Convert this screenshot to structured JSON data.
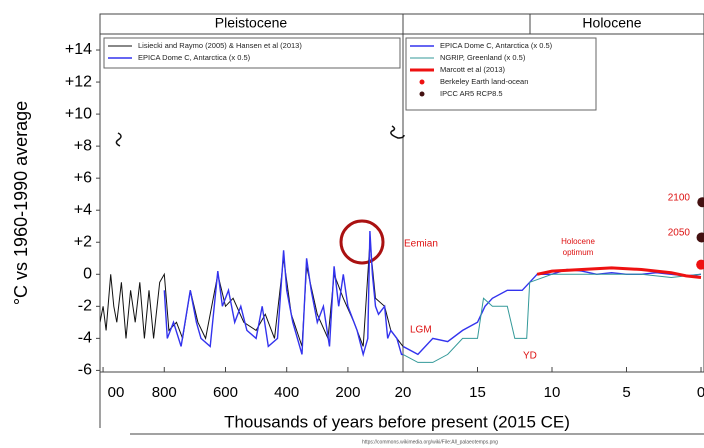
{
  "chart_data": [
    {
      "type": "line",
      "title": "Pleistocene",
      "ylabel": "°C vs 1960-1990 average",
      "xlabel": "Thousands of years before present (2015 CE)",
      "xlim": [
        1010,
        20
      ],
      "ylim": [
        -6.1,
        15
      ],
      "xticks": [
        {
          "value": 1000,
          "label": "00"
        },
        800,
        600,
        400,
        200,
        20
      ],
      "yticks": [
        {
          "value": 14,
          "label": "+14"
        },
        {
          "value": 12,
          "label": "+12"
        },
        {
          "value": 10,
          "label": "+10"
        },
        {
          "value": 8,
          "label": "+8"
        },
        {
          "value": 6,
          "label": "+6"
        },
        {
          "value": 4,
          "label": "+4"
        },
        {
          "value": 2,
          "label": "+2"
        },
        0,
        -2,
        -4,
        -6
      ],
      "series": [
        {
          "name": "Lisiecki and Raymo (2005) & Hansen et al (2013)",
          "color": "#111111",
          "marker": "line",
          "width": 1,
          "x": [
            1010,
            1000,
            990,
            975,
            965,
            955,
            940,
            925,
            910,
            895,
            880,
            865,
            850,
            835,
            815,
            800,
            785,
            760,
            740,
            715,
            690,
            665,
            625,
            600,
            575,
            540,
            500,
            470,
            440,
            410,
            385,
            350,
            335,
            300,
            265,
            245,
            215,
            180,
            150,
            128,
            110,
            80,
            60,
            40,
            20
          ],
          "values": [
            -3,
            -2,
            -3.5,
            0,
            -2,
            -3,
            -0.5,
            -4,
            -1,
            -3,
            -0.5,
            -4,
            -1,
            -4,
            -0.5,
            0,
            -3.5,
            -3,
            -4,
            -1,
            -3,
            -4,
            0,
            -2,
            -1.5,
            -3,
            -3.5,
            -2.5,
            -4,
            1,
            -2.5,
            -4.5,
            0.5,
            -2.5,
            -4,
            0,
            -1.5,
            -3,
            -4.5,
            2,
            -1.5,
            -2,
            -3.5,
            -4,
            -4.5
          ]
        },
        {
          "name": "EPICA Dome C, Antarctica (x 0.5)",
          "color": "#3333ee",
          "marker": "line",
          "width": 1.4,
          "x": [
            800,
            790,
            770,
            745,
            715,
            695,
            680,
            650,
            625,
            610,
            590,
            570,
            550,
            530,
            500,
            480,
            460,
            430,
            410,
            400,
            380,
            350,
            335,
            320,
            300,
            280,
            260,
            245,
            230,
            215,
            200,
            170,
            150,
            135,
            128,
            120,
            110,
            100,
            80,
            70,
            60,
            40,
            25,
            20
          ],
          "values": [
            -1,
            -4,
            -3,
            -4.5,
            -1,
            -3,
            -4,
            -4.5,
            0.2,
            -2,
            -1,
            -3,
            -2,
            -3.5,
            -4,
            -2,
            -4.5,
            -4,
            1.5,
            -1,
            -3,
            -5,
            1,
            -1,
            -3,
            -2,
            -4.5,
            0.5,
            -2,
            0,
            -2,
            -3.5,
            -5,
            -4,
            2.7,
            0,
            -2,
            -2.5,
            -2,
            -4,
            -3.5,
            -4,
            -5,
            -5
          ]
        }
      ],
      "annotations": [
        "Eemian"
      ]
    },
    {
      "type": "line",
      "title": "Holocene",
      "xlim": [
        20,
        -0.2
      ],
      "ylim": [
        -6.1,
        15
      ],
      "xticks": [
        15,
        10,
        5,
        0
      ],
      "series": [
        {
          "name": "EPICA Dome C, Antarctica (x 0.5)",
          "color": "#3333ee",
          "marker": "line",
          "width": 1.4,
          "x": [
            20,
            19,
            18,
            17,
            16,
            15,
            14.5,
            14,
            13,
            12,
            11.5,
            11,
            10,
            9,
            8,
            7,
            6,
            5,
            4,
            3,
            2,
            1,
            0
          ],
          "values": [
            -4.5,
            -5,
            -4,
            -4.2,
            -3.5,
            -3,
            -2,
            -1.5,
            -1,
            -1,
            -0.5,
            0,
            0,
            0.3,
            0.2,
            0,
            0.1,
            0,
            0,
            0.1,
            0,
            -0.1,
            0
          ]
        },
        {
          "name": "NGRIP, Greenland (x 0.5)",
          "color": "#339999",
          "marker": "line",
          "width": 1,
          "x": [
            20,
            19,
            18,
            17,
            16,
            15,
            14.6,
            14,
            13,
            12.5,
            11.7,
            11.5,
            10,
            8,
            6,
            4,
            2,
            0
          ],
          "values": [
            -5,
            -5.5,
            -5.5,
            -5,
            -4,
            -4,
            -1.5,
            -2,
            -2,
            -4,
            -4,
            -0.5,
            0,
            0,
            0,
            0,
            -0.2,
            0
          ]
        },
        {
          "name": "Marcott et al (2013)",
          "color": "#ee1111",
          "marker": "line",
          "width": 3,
          "x": [
            11,
            10,
            8,
            6,
            4,
            2,
            1,
            0
          ],
          "values": [
            0,
            0.2,
            0.3,
            0.4,
            0.3,
            0.1,
            -0.1,
            -0.2
          ]
        },
        {
          "name": "Berkeley Earth land-ocean",
          "color": "#ee1111",
          "marker": "dot",
          "x": [
            -0.01
          ],
          "values": [
            0.6
          ]
        },
        {
          "name": "IPCC AR5 RCP8.5",
          "color": "#441111",
          "marker": "dot",
          "x": [
            -0.035,
            -0.085
          ],
          "values": [
            2.3,
            4.5
          ]
        }
      ],
      "annotations": [
        "LGM",
        "YD",
        "Holocene",
        "optimum",
        "2100",
        "2050"
      ]
    }
  ],
  "source": "https://commons.wikimedia.org/wiki/File:All_palaeotemps.png"
}
